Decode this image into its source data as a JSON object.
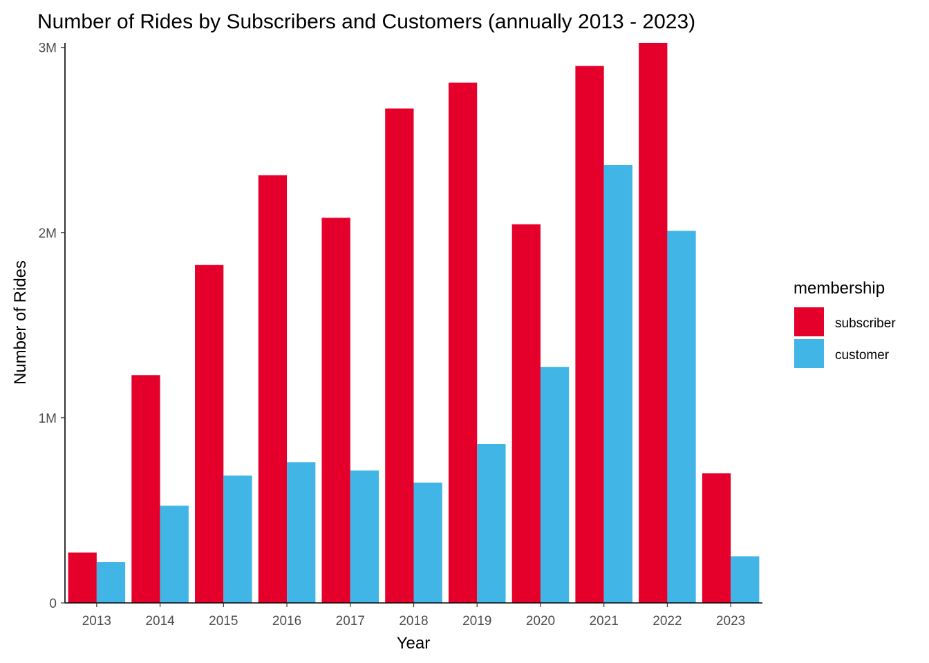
{
  "chart_data": {
    "type": "bar",
    "title": "Number of Rides by Subscribers and Customers (annually 2013 - 2023)",
    "xlabel": "Year",
    "ylabel": "Number of Rides",
    "categories": [
      "2013",
      "2014",
      "2015",
      "2016",
      "2017",
      "2018",
      "2019",
      "2020",
      "2021",
      "2022",
      "2023"
    ],
    "series": [
      {
        "name": "subscriber",
        "color": "#E4002B",
        "values": [
          272000,
          1230000,
          1825000,
          2310000,
          2080000,
          2670000,
          2810000,
          2045000,
          2900000,
          3025000,
          700000
        ]
      },
      {
        "name": "customer",
        "color": "#41B6E6",
        "values": [
          220000,
          525000,
          688000,
          760000,
          715000,
          650000,
          858000,
          1275000,
          2365000,
          2010000,
          252000
        ]
      }
    ],
    "ylim": [
      0,
      3025000
    ],
    "yticks": [
      0,
      1000000,
      2000000,
      3000000
    ],
    "ytick_labels": [
      "0",
      "1M",
      "2M",
      "3M"
    ],
    "legend": {
      "title": "membership",
      "placement": "right"
    },
    "grid": false
  }
}
